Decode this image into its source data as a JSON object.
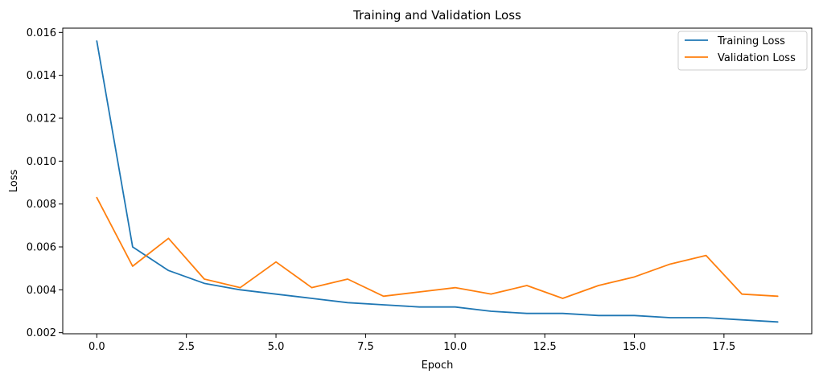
{
  "chart_data": {
    "type": "line",
    "title": "Training and Validation Loss",
    "xlabel": "Epoch",
    "ylabel": "Loss",
    "xlim": [
      -0.95,
      19.95
    ],
    "ylim": [
      0.00195,
      0.0162
    ],
    "xticks": [
      0.0,
      2.5,
      5.0,
      7.5,
      10.0,
      12.5,
      15.0,
      17.5
    ],
    "xtick_labels": [
      "0.0",
      "2.5",
      "5.0",
      "7.5",
      "10.0",
      "12.5",
      "15.0",
      "17.5"
    ],
    "yticks": [
      0.002,
      0.004,
      0.006,
      0.008,
      0.01,
      0.012,
      0.014,
      0.016
    ],
    "ytick_labels": [
      "0.002",
      "0.004",
      "0.006",
      "0.008",
      "0.010",
      "0.012",
      "0.014",
      "0.016"
    ],
    "grid": false,
    "legend_position": "top-right",
    "x": [
      0,
      1,
      2,
      3,
      4,
      5,
      6,
      7,
      8,
      9,
      10,
      11,
      12,
      13,
      14,
      15,
      16,
      17,
      18,
      19
    ],
    "series": [
      {
        "name": "Training Loss",
        "color": "#1f77b4",
        "values": [
          0.0156,
          0.006,
          0.0049,
          0.0043,
          0.004,
          0.0038,
          0.0036,
          0.0034,
          0.0033,
          0.0032,
          0.0032,
          0.003,
          0.0029,
          0.0029,
          0.0028,
          0.0028,
          0.0027,
          0.0027,
          0.0026,
          0.0025
        ]
      },
      {
        "name": "Validation Loss",
        "color": "#ff7f0e",
        "values": [
          0.0083,
          0.0051,
          0.0064,
          0.0045,
          0.0041,
          0.0053,
          0.0041,
          0.0045,
          0.0037,
          0.0039,
          0.0041,
          0.0038,
          0.0042,
          0.0036,
          0.0042,
          0.0046,
          0.0052,
          0.0056,
          0.0038,
          0.0037
        ]
      }
    ]
  }
}
